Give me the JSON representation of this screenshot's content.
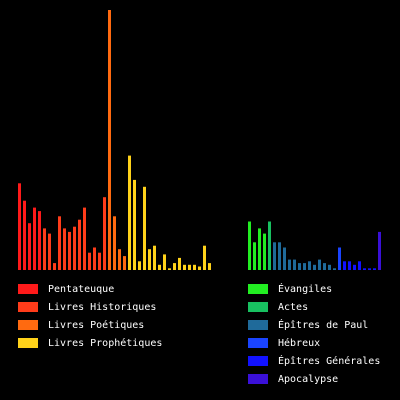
{
  "chart_data": {
    "type": "bar",
    "title": "",
    "xlabel": "",
    "ylabel": "",
    "ylim": [
      0,
      150
    ],
    "grid": false,
    "legend_placement": "bottom",
    "background": "#000000",
    "groups": [
      {
        "books": [
          {
            "c": 0,
            "v": 50
          },
          {
            "c": 0,
            "v": 40
          },
          {
            "c": 0,
            "v": 27
          },
          {
            "c": 0,
            "v": 36
          },
          {
            "c": 0,
            "v": 34
          },
          {
            "c": 1,
            "v": 24
          },
          {
            "c": 1,
            "v": 21
          },
          {
            "c": 1,
            "v": 4
          },
          {
            "c": 1,
            "v": 31
          },
          {
            "c": 1,
            "v": 24
          },
          {
            "c": 1,
            "v": 22
          },
          {
            "c": 1,
            "v": 25
          },
          {
            "c": 1,
            "v": 29
          },
          {
            "c": 1,
            "v": 36
          },
          {
            "c": 1,
            "v": 10
          },
          {
            "c": 1,
            "v": 13
          },
          {
            "c": 1,
            "v": 10
          },
          {
            "c": 1,
            "v": 42
          },
          {
            "c": 2,
            "v": 150
          },
          {
            "c": 2,
            "v": 31
          },
          {
            "c": 2,
            "v": 12
          },
          {
            "c": 2,
            "v": 8
          },
          {
            "c": 3,
            "v": 66
          },
          {
            "c": 3,
            "v": 52
          },
          {
            "c": 3,
            "v": 5
          },
          {
            "c": 3,
            "v": 48
          },
          {
            "c": 3,
            "v": 12
          },
          {
            "c": 3,
            "v": 14
          },
          {
            "c": 3,
            "v": 3
          },
          {
            "c": 3,
            "v": 9
          },
          {
            "c": 3,
            "v": 1
          },
          {
            "c": 3,
            "v": 4
          },
          {
            "c": 3,
            "v": 7
          },
          {
            "c": 3,
            "v": 3
          },
          {
            "c": 3,
            "v": 3
          },
          {
            "c": 3,
            "v": 3
          },
          {
            "c": 3,
            "v": 2
          },
          {
            "c": 3,
            "v": 14
          },
          {
            "c": 3,
            "v": 4
          }
        ]
      },
      {
        "books": [
          {
            "c": 0,
            "v": 28
          },
          {
            "c": 0,
            "v": 16
          },
          {
            "c": 0,
            "v": 24
          },
          {
            "c": 0,
            "v": 21
          },
          {
            "c": 1,
            "v": 28
          },
          {
            "c": 2,
            "v": 16
          },
          {
            "c": 2,
            "v": 16
          },
          {
            "c": 2,
            "v": 13
          },
          {
            "c": 2,
            "v": 6
          },
          {
            "c": 2,
            "v": 6
          },
          {
            "c": 2,
            "v": 4
          },
          {
            "c": 2,
            "v": 4
          },
          {
            "c": 2,
            "v": 5
          },
          {
            "c": 2,
            "v": 3
          },
          {
            "c": 2,
            "v": 6
          },
          {
            "c": 2,
            "v": 4
          },
          {
            "c": 2,
            "v": 3
          },
          {
            "c": 2,
            "v": 1
          },
          {
            "c": 3,
            "v": 13
          },
          {
            "c": 4,
            "v": 5
          },
          {
            "c": 4,
            "v": 5
          },
          {
            "c": 4,
            "v": 3
          },
          {
            "c": 4,
            "v": 5
          },
          {
            "c": 4,
            "v": 1
          },
          {
            "c": 4,
            "v": 1
          },
          {
            "c": 4,
            "v": 1
          },
          {
            "c": 5,
            "v": 22
          }
        ]
      }
    ],
    "legend": [
      [
        {
          "label": "Pentateuque",
          "color": "#ff1a1a"
        },
        {
          "label": "Livres Historiques",
          "color": "#ff3c1a"
        },
        {
          "label": "Livres Poétiques",
          "color": "#ff6a10"
        },
        {
          "label": "Livres Prophétiques",
          "color": "#ffd21a"
        }
      ],
      [
        {
          "label": "Évangiles",
          "color": "#22ee22"
        },
        {
          "label": "Actes",
          "color": "#18c060"
        },
        {
          "label": "Épîtres de Paul",
          "color": "#1f6a9a"
        },
        {
          "label": "Hébreux",
          "color": "#1a44ff"
        },
        {
          "label": "Épîtres Générales",
          "color": "#1212ff"
        },
        {
          "label": "Apocalypse",
          "color": "#3a10d8"
        }
      ]
    ]
  }
}
